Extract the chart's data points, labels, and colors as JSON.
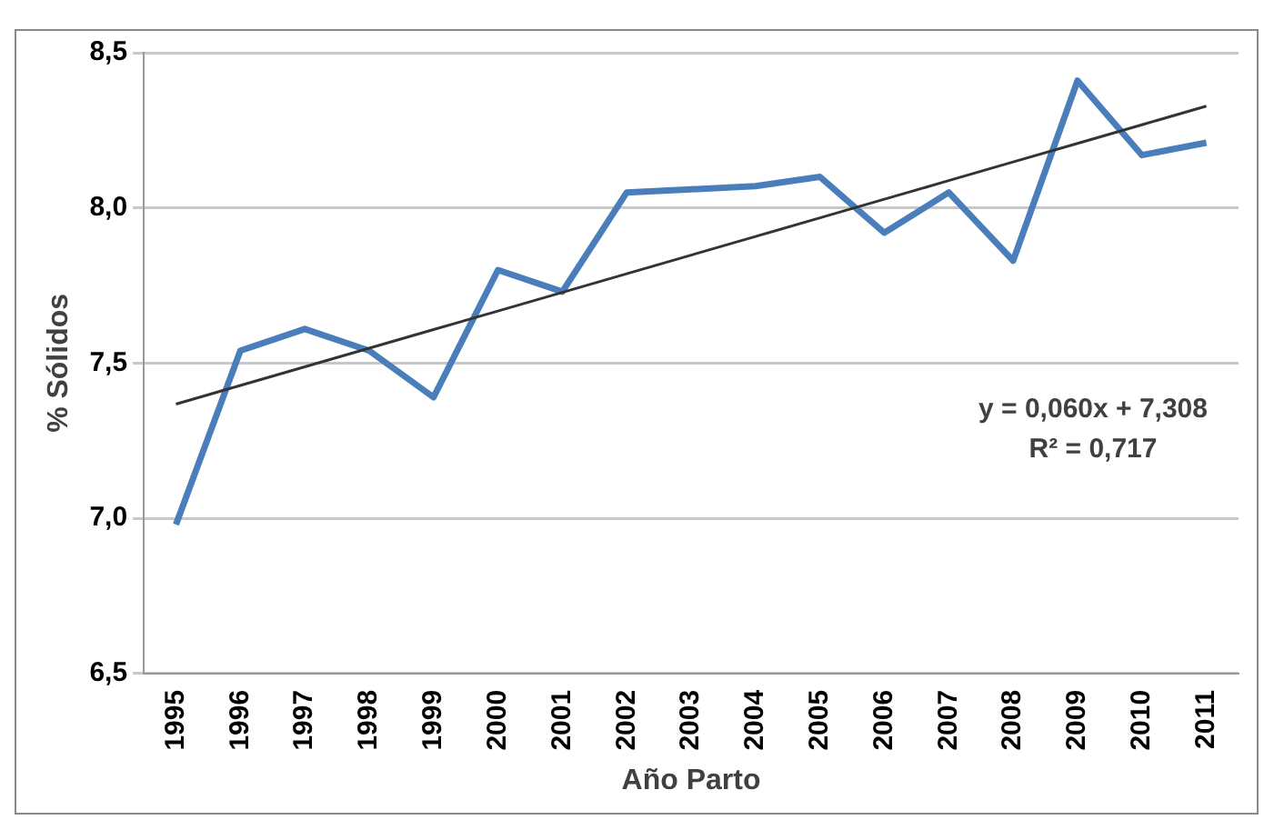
{
  "chart_data": {
    "type": "line",
    "xlabel": "Año Parto",
    "ylabel": "% Sólidos",
    "categories": [
      "1995",
      "1996",
      "1997",
      "1998",
      "1999",
      "2000",
      "2001",
      "2002",
      "2003",
      "2004",
      "2005",
      "2006",
      "2007",
      "2008",
      "2009",
      "2010",
      "2011"
    ],
    "series": [
      {
        "color": "#4a7ebb",
        "values": [
          6.98,
          7.54,
          7.61,
          7.54,
          7.39,
          7.8,
          7.73,
          8.05,
          8.06,
          8.07,
          8.1,
          7.92,
          8.05,
          7.83,
          8.41,
          8.17,
          8.21
        ]
      },
      {
        "type": "line",
        "color": "#333333",
        "values": [
          7.368,
          7.428,
          7.488,
          7.548,
          7.608,
          7.668,
          7.728,
          7.788,
          7.848,
          7.908,
          7.968,
          8.028,
          8.088,
          8.148,
          8.208,
          8.268,
          8.328
        ]
      }
    ],
    "ylim": [
      6.5,
      8.5
    ],
    "yticks": [
      {
        "value": 6.5,
        "label": "6,5"
      },
      {
        "value": 7,
        "label": "7,0"
      },
      {
        "value": 7.5,
        "label": "7,5"
      },
      {
        "value": 8,
        "label": "8,0"
      },
      {
        "value": 8.5,
        "label": "8,5"
      }
    ],
    "grid": "y",
    "legend": false,
    "marker": "none",
    "annotations": [
      "y = 0,060x + 7,308",
      "R² = 0,717"
    ]
  }
}
